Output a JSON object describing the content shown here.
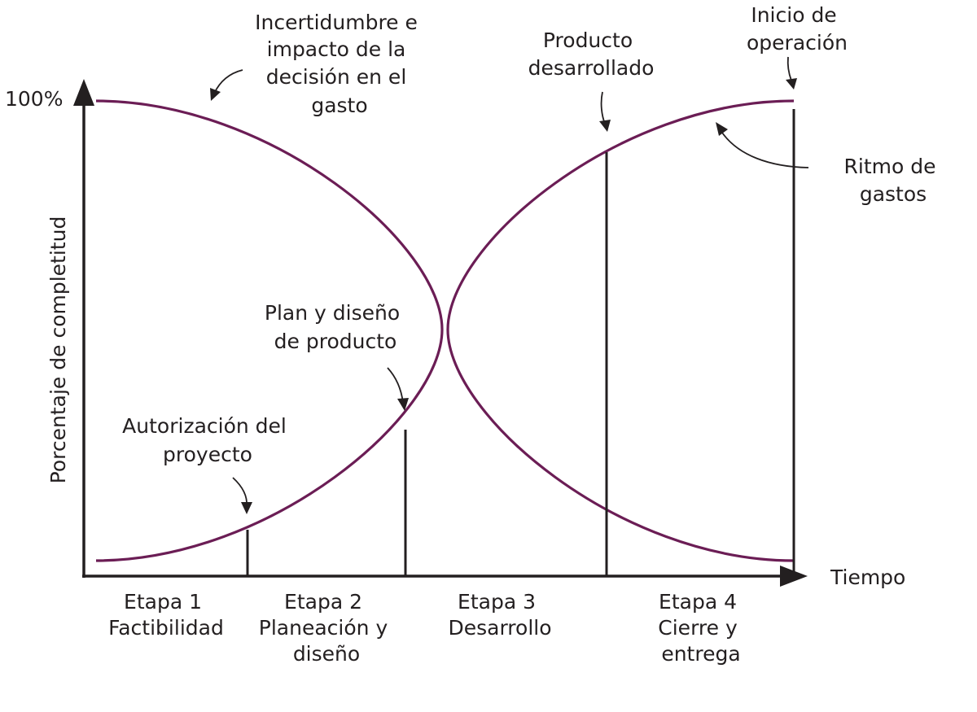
{
  "diagram": {
    "y_axis_label": "Porcentaje de completitud",
    "y_axis_max_label": "100%",
    "x_axis_label": "Tiempo",
    "curve_color": "#6b1d55",
    "axis_color": "#231f20",
    "stages": [
      {
        "lines": [
          "Etapa 1",
          "Factibilidad"
        ]
      },
      {
        "lines": [
          "Etapa 2",
          "Planeación y",
          "diseño"
        ]
      },
      {
        "lines": [
          "Etapa 3",
          "Desarrollo"
        ]
      },
      {
        "lines": [
          "Etapa 4",
          "Cierre y",
          "entrega"
        ]
      }
    ],
    "annotations": {
      "uncertainty": [
        "Incertidumbre e",
        "impacto de la",
        "decisión en el",
        "gasto"
      ],
      "authorization": [
        "Autorización del",
        "proyecto"
      ],
      "plan_design": [
        "Plan y diseño",
        "de producto"
      ],
      "product_developed": [
        "Producto",
        "desarrollado"
      ],
      "start_operation": [
        "Inicio de",
        "operación"
      ],
      "spending_rate": [
        "Ritmo de",
        "gastos"
      ]
    },
    "icons": [
      "arrow-icon"
    ]
  }
}
